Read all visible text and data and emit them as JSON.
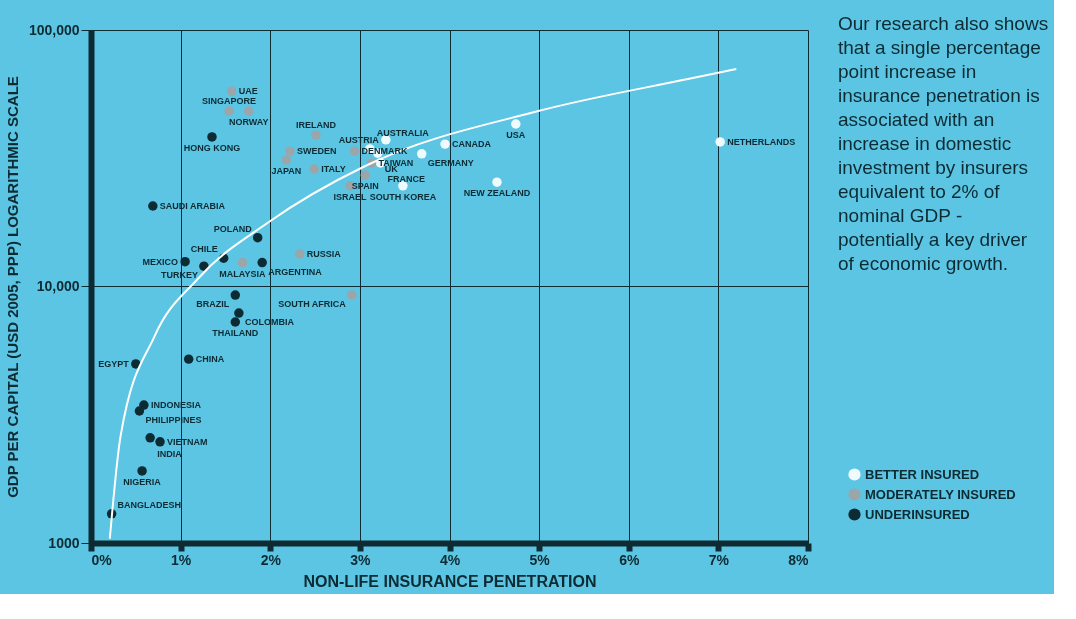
{
  "chart_data": {
    "type": "scatter",
    "xlabel": "NON-LIFE INSURANCE PENETRATION",
    "ylabel": "GDP PER CAPITAL (USD 2005, PPP) LOGARITHMIC SCALE",
    "xlim": [
      0,
      8
    ],
    "ylim": [
      1000,
      100000
    ],
    "log": "y",
    "xticks": [
      {
        "value": 0,
        "label": "0%"
      },
      {
        "value": 1,
        "label": "1%"
      },
      {
        "value": 2,
        "label": "2%"
      },
      {
        "value": 3,
        "label": "3%"
      },
      {
        "value": 4,
        "label": "4%"
      },
      {
        "value": 5,
        "label": "5%"
      },
      {
        "value": 6,
        "label": "6%"
      },
      {
        "value": 7,
        "label": "7%"
      },
      {
        "value": 8,
        "label": "8%"
      }
    ],
    "yticks": [
      {
        "value": 1000,
        "label": "1000"
      },
      {
        "value": 10000,
        "label": "10,000"
      },
      {
        "value": 100000,
        "label": "100,000"
      }
    ],
    "grid": true,
    "legend": "bottom right",
    "marker": "circle",
    "series": [
      {
        "name": "BETTER INSURED",
        "color": "#eefafd",
        "x": [
          3.11,
          3.2,
          3.29,
          3.23,
          3.48,
          3.69,
          3.95,
          4.74,
          4.53,
          7.02
        ],
        "values": [
          34400,
          33100,
          37300,
          30300,
          24700,
          32900,
          35900,
          43000,
          25500,
          36600
        ]
      },
      {
        "name": "MODERATELY INSURED",
        "color": "#9aa6aa",
        "x": [
          1.57,
          1.54,
          1.76,
          2.51,
          2.22,
          2.18,
          2.49,
          2.94,
          3.13,
          3.06,
          2.89,
          2.33,
          1.69,
          2.91
        ],
        "values": [
          57800,
          48300,
          48300,
          39000,
          33700,
          31100,
          28700,
          33700,
          30300,
          27200,
          24700,
          13400,
          12400,
          9260
        ]
      },
      {
        "name": "UNDERINSURED",
        "color": "#0d2b33",
        "x": [
          1.35,
          0.69,
          1.86,
          1.05,
          1.26,
          1.48,
          1.91,
          1.61,
          1.65,
          1.61,
          1.09,
          0.5,
          0.59,
          0.54,
          0.66,
          0.77,
          0.57,
          0.23
        ],
        "values": [
          38300,
          20600,
          15500,
          12500,
          12000,
          12900,
          12400,
          9260,
          7880,
          7270,
          5210,
          4990,
          3450,
          3270,
          2570,
          2480,
          1910,
          1300
        ]
      },
      {
        "type": "line",
        "color": "#ffffff",
        "marker": "none",
        "x": [
          0.21,
          0.33,
          0.71,
          1.19,
          1.98,
          3.06,
          4.99,
          6.66,
          7.2
        ],
        "values": [
          1040,
          2610,
          6410,
          10700,
          17800,
          29500,
          48300,
          64400,
          70400
        ]
      }
    ],
    "annotations": [
      "Our research also shows that a single percentage point increase in insurance penetration is associated with an increase in domestic investment by insurers equivalent to 2% of nominal GDP - potentially a key driver of economic growth.",
      {
        "text": "AUSTRALIA",
        "x": 3.11,
        "y": 34400
      },
      {
        "text": "UK",
        "x": 3.2,
        "y": 33100
      },
      {
        "text": "AUSTRIA",
        "x": 3.29,
        "y": 37300
      },
      {
        "text": "FRANCE",
        "x": 3.23,
        "y": 30300
      },
      {
        "text": "SOUTH KOREA",
        "x": 3.48,
        "y": 24700
      },
      {
        "text": "GERMANY",
        "x": 3.69,
        "y": 32900
      },
      {
        "text": "CANADA",
        "x": 3.95,
        "y": 35900
      },
      {
        "text": "USA",
        "x": 4.74,
        "y": 43000
      },
      {
        "text": "NEW ZEALAND",
        "x": 4.53,
        "y": 25500
      },
      {
        "text": "NETHERLANDS",
        "x": 7.02,
        "y": 36600
      },
      {
        "text": "UAE",
        "x": 1.57,
        "y": 57800
      },
      {
        "text": "SINGAPORE",
        "x": 1.54,
        "y": 48300
      },
      {
        "text": "NORWAY",
        "x": 1.76,
        "y": 48300
      },
      {
        "text": "IRELAND",
        "x": 2.51,
        "y": 39000
      },
      {
        "text": "SWEDEN",
        "x": 2.22,
        "y": 33700
      },
      {
        "text": "JAPAN",
        "x": 2.18,
        "y": 31100
      },
      {
        "text": "ITALY",
        "x": 2.49,
        "y": 28700
      },
      {
        "text": "DENMARK",
        "x": 2.94,
        "y": 33700
      },
      {
        "text": "TAIWAN",
        "x": 3.13,
        "y": 30300
      },
      {
        "text": "SPAIN",
        "x": 3.06,
        "y": 27200
      },
      {
        "text": "ISRAEL",
        "x": 2.89,
        "y": 24700
      },
      {
        "text": "RUSSIA",
        "x": 2.33,
        "y": 13400
      },
      {
        "text": "MALAYSIA",
        "x": 1.69,
        "y": 12400
      },
      {
        "text": "SOUTH AFRICA",
        "x": 2.91,
        "y": 9260
      },
      {
        "text": "HONG KONG",
        "x": 1.35,
        "y": 38300
      },
      {
        "text": "SAUDI ARABIA",
        "x": 0.69,
        "y": 20600
      },
      {
        "text": "POLAND",
        "x": 1.86,
        "y": 15500
      },
      {
        "text": "MEXICO",
        "x": 1.05,
        "y": 12500
      },
      {
        "text": "TURKEY",
        "x": 1.26,
        "y": 12000
      },
      {
        "text": "CHILE",
        "x": 1.48,
        "y": 12900
      },
      {
        "text": "ARGENTINA",
        "x": 1.91,
        "y": 12400
      },
      {
        "text": "BRAZIL",
        "x": 1.61,
        "y": 9260
      },
      {
        "text": "COLOMBIA",
        "x": 1.65,
        "y": 7880
      },
      {
        "text": "THAILAND",
        "x": 1.61,
        "y": 7270
      },
      {
        "text": "CHINA",
        "x": 1.09,
        "y": 5210
      },
      {
        "text": "EGYPT",
        "x": 0.5,
        "y": 4990
      },
      {
        "text": "INDONESIA",
        "x": 0.59,
        "y": 3450
      },
      {
        "text": "PHILIPPINES",
        "x": 0.54,
        "y": 3270
      },
      {
        "text": "INDIA",
        "x": 0.66,
        "y": 2570
      },
      {
        "text": "VIETNAM",
        "x": 0.77,
        "y": 2480
      },
      {
        "text": "NIGERIA",
        "x": 0.57,
        "y": 1910
      },
      {
        "text": "BANGLADESH",
        "x": 0.23,
        "y": 1300
      }
    ]
  }
}
